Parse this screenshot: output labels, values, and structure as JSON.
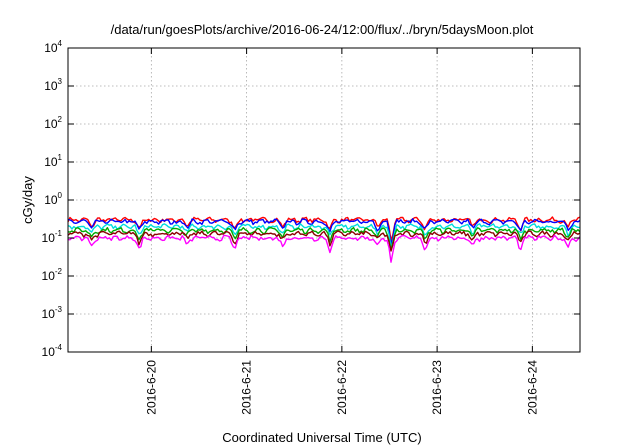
{
  "chart_data": {
    "type": "line",
    "title": "/data/run/goesPlots/archive/2016-06-24/12:00/flux/../bryn/5daysMoon.plot",
    "xlabel": "Coordinated Universal Time (UTC)",
    "ylabel": "cGy/day",
    "yscale": "log",
    "ylim": [
      0.0001,
      10000
    ],
    "xlim": [
      "2016-06-19 03:00",
      "2016-06-24 12:00"
    ],
    "grid": true,
    "legend": "none",
    "y_ticks": [
      {
        "base": "10",
        "exp": "-4"
      },
      {
        "base": "10",
        "exp": "-3"
      },
      {
        "base": "10",
        "exp": "-2"
      },
      {
        "base": "10",
        "exp": "-1"
      },
      {
        "base": "10",
        "exp": "0"
      },
      {
        "base": "10",
        "exp": "1"
      },
      {
        "base": "10",
        "exp": "2"
      },
      {
        "base": "10",
        "exp": "3"
      },
      {
        "base": "10",
        "exp": "4"
      }
    ],
    "x_ticks": [
      "2016-6-20",
      "2016-6-21",
      "2016-6-22",
      "2016-6-23",
      "2016-6-24"
    ],
    "dips": [
      {
        "x": "2016-06-19 09:00",
        "factor": 0.65
      },
      {
        "x": "2016-06-19 21:00",
        "factor": 0.55
      },
      {
        "x": "2016-06-20 09:00",
        "factor": 0.7
      },
      {
        "x": "2016-06-20 21:00",
        "factor": 0.55
      },
      {
        "x": "2016-06-21 09:00",
        "factor": 0.65
      },
      {
        "x": "2016-06-21 21:00",
        "factor": 0.55
      },
      {
        "x": "2016-06-22 09:00",
        "factor": 0.65
      },
      {
        "x": "2016-06-22 12:30",
        "factor": 0.22
      },
      {
        "x": "2016-06-22 21:00",
        "factor": 0.55
      },
      {
        "x": "2016-06-23 09:00",
        "factor": 0.65
      },
      {
        "x": "2016-06-23 21:00",
        "factor": 0.55
      },
      {
        "x": "2016-06-24 09:00",
        "factor": 0.65
      }
    ],
    "series": [
      {
        "color": "#ff0000",
        "y": 0.3
      },
      {
        "color": "#0000ff",
        "y": 0.27
      },
      {
        "color": "#00dddd",
        "y": 0.2
      },
      {
        "color": "#00aa00",
        "y": 0.16
      },
      {
        "color": "#8b0000",
        "y": 0.13
      },
      {
        "color": "#ff00ff",
        "y": 0.1
      }
    ]
  }
}
